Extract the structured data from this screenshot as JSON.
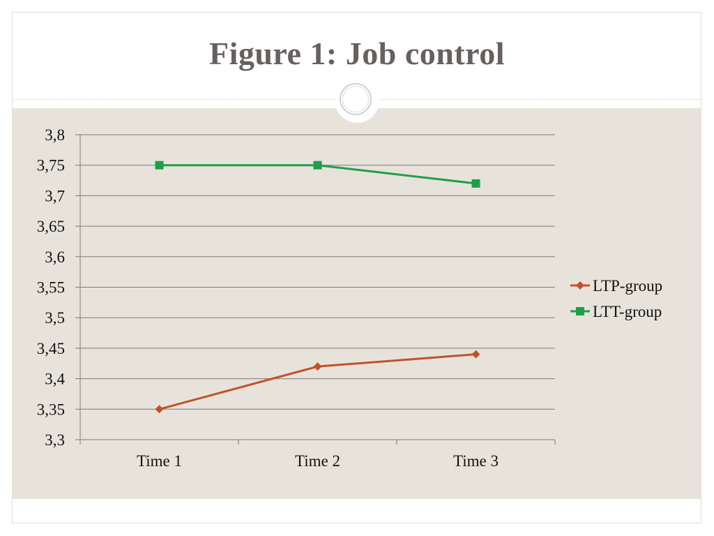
{
  "slide": {
    "title": "Figure 1: Job control"
  },
  "colors": {
    "band": "#e8e3da",
    "title": "#67605f",
    "ltp": "#c0532a",
    "ltt": "#1f9e4a",
    "grid": "#7a7a7a"
  },
  "chart_data": {
    "type": "line",
    "title": "",
    "xlabel": "",
    "ylabel": "",
    "categories": [
      "Time 1",
      "Time 2",
      "Time 3"
    ],
    "ylim": [
      3.3,
      3.8
    ],
    "y_ticks": [
      3.3,
      3.35,
      3.4,
      3.45,
      3.5,
      3.55,
      3.6,
      3.65,
      3.7,
      3.75,
      3.8
    ],
    "y_tick_labels": [
      "3,3",
      "3,35",
      "3,4",
      "3,45",
      "3,5",
      "3,55",
      "3,6",
      "3,65",
      "3,7",
      "3,75",
      "3,8"
    ],
    "grid": true,
    "legend_position": "right",
    "series": [
      {
        "name": "LTP-group",
        "values": [
          3.35,
          3.42,
          3.44
        ],
        "color": "#c0532a",
        "marker": "diamond"
      },
      {
        "name": "LTT-group",
        "values": [
          3.75,
          3.75,
          3.72
        ],
        "color": "#1f9e4a",
        "marker": "square"
      }
    ]
  }
}
